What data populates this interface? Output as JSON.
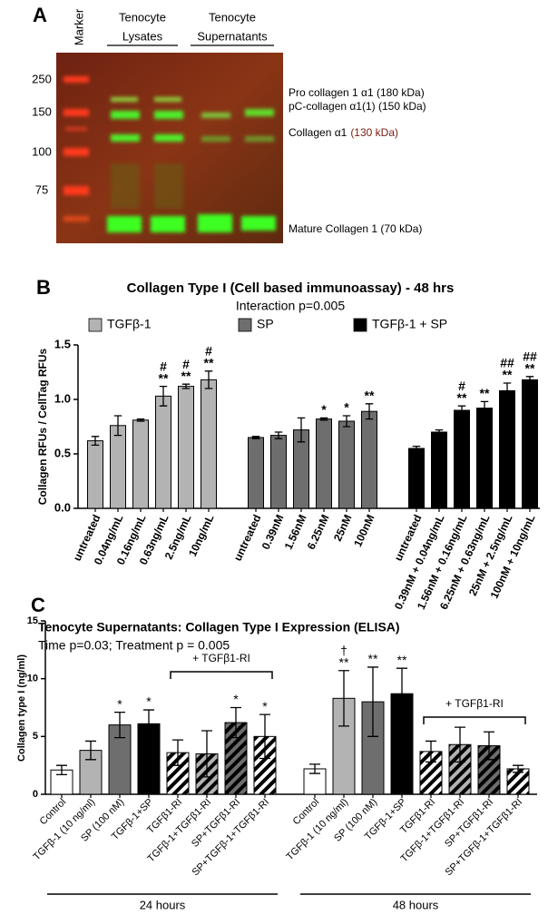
{
  "panel_a": {
    "letter": "A",
    "marker_label": "Marker",
    "lane_groups": [
      [
        "Tenocyte",
        "Lysates"
      ],
      [
        "Tenocyte",
        "Supernatants"
      ]
    ],
    "mw_markers": [
      250,
      150,
      100,
      75
    ],
    "band_labels": [
      [
        "Pro collagen 1 α1 (180 kDa)"
      ],
      [
        "pC-collagen α1(1) (150 kDa)"
      ],
      [
        "Collagen α1",
        "(130 kDa)"
      ],
      [
        "Mature Collagen 1 (70 kDa)"
      ]
    ]
  },
  "chart_data": [
    {
      "type": "bar",
      "letter": "B",
      "title": "Collagen Type I (Cell based immunoassay) - 48 hrs",
      "subtitle": "Interaction p=0.005",
      "y_label": "Collagen RFUs / CellTag RFUs",
      "categories": [
        "untreated",
        "0.04ng/mL",
        "0.16ng/mL",
        "0.63ng/mL",
        "2.5ng/mL",
        "10ng/mL",
        "untreated",
        "0.39nM",
        "1.56nM",
        "6.25nM",
        "25nM",
        "100nM",
        "untreated",
        "0.39nM + 0.04ng/mL",
        "1.56nM + 0.16ng/mL",
        "6.25nM + 0.63ng/mL",
        "25nM + 2.5ng/mL",
        "100nM + 10ng/mL"
      ],
      "series": [
        {
          "name": "TGFβ-1",
          "color": "#b3b3b3",
          "values": [
            0.62,
            0.76,
            0.81,
            1.03,
            1.12,
            1.18,
            null,
            null,
            null,
            null,
            null,
            null,
            null,
            null,
            null,
            null,
            null,
            null
          ],
          "errors": [
            0.04,
            0.09,
            0.01,
            0.09,
            0.02,
            0.08,
            null,
            null,
            null,
            null,
            null,
            null,
            null,
            null,
            null,
            null,
            null,
            null
          ]
        },
        {
          "name": "SP",
          "color": "#6e6e6e",
          "values": [
            null,
            null,
            null,
            null,
            null,
            null,
            0.65,
            0.67,
            0.72,
            0.82,
            0.8,
            0.89,
            null,
            null,
            null,
            null,
            null,
            null
          ],
          "errors": [
            null,
            null,
            null,
            null,
            null,
            null,
            0.01,
            0.03,
            0.11,
            0.01,
            0.05,
            0.07,
            null,
            null,
            null,
            null,
            null,
            null
          ]
        },
        {
          "name": "TGFβ-1 + SP",
          "color": "#000000",
          "values": [
            null,
            null,
            null,
            null,
            null,
            null,
            null,
            null,
            null,
            null,
            null,
            null,
            0.55,
            0.7,
            0.9,
            0.92,
            1.08,
            1.18
          ],
          "errors": [
            null,
            null,
            null,
            null,
            null,
            null,
            null,
            null,
            null,
            null,
            null,
            null,
            0.02,
            0.02,
            0.04,
            0.06,
            0.07,
            0.03
          ]
        }
      ],
      "annotations": [
        null,
        null,
        null,
        [
          "#",
          "**"
        ],
        [
          "#",
          "**"
        ],
        [
          "#",
          "**"
        ],
        null,
        null,
        null,
        [
          "*"
        ],
        [
          "*"
        ],
        [
          "**"
        ],
        null,
        null,
        [
          "#",
          "**"
        ],
        [
          "**"
        ],
        [
          "##",
          "**"
        ],
        [
          "##",
          "**"
        ]
      ],
      "ylim": [
        0,
        1.5
      ],
      "yticks": [
        {
          "value": 0,
          "label": "0.0"
        },
        0.5,
        {
          "value": 1,
          "label": "1.0"
        },
        1.5
      ]
    },
    {
      "type": "bar",
      "letter": "C",
      "title": "Tenocyte Supernatants: Collagen Type I Expression (ELISA)",
      "subtitle": "Time p=0.03; Treatment p = 0.005",
      "y_label": "Collagen type I (ng/ml)",
      "categories": [
        "Control",
        "TGFβ-1 (10 ng/ml)",
        "SP (100 nM)",
        "TGFβ-1+SP",
        "TGFβ1-RI",
        "TGFβ-1+TGFβ1-RI",
        "SP+TGFβ1-RI",
        "SP+TGFβ-1+TGFβ1-RI",
        "Control",
        "TGFβ-1 (10 ng/ml)",
        "SP (100 nM)",
        "TGFβ-1+SP",
        "TGFβ1-RI",
        "TGFβ-1+TGFβ1-RI",
        "SP+TGFβ1-RI",
        "SP+TGFβ-1+TGFβ1-RI"
      ],
      "values": [
        2.1,
        3.8,
        6.0,
        6.1,
        3.6,
        3.5,
        6.2,
        5.0,
        2.2,
        8.3,
        8.0,
        8.7,
        3.7,
        4.3,
        4.2,
        2.2
      ],
      "errors": [
        0.4,
        0.8,
        1.1,
        1.2,
        1.1,
        2.0,
        1.3,
        1.9,
        0.4,
        2.4,
        3.0,
        2.2,
        0.9,
        1.5,
        1.2,
        0.3
      ],
      "colors": [
        "#ffffff",
        "#b3b3b3",
        "#6e6e6e",
        "#000000",
        "#ffffff",
        "#b3b3b3",
        "#6e6e6e",
        "#000000",
        "#ffffff",
        "#b3b3b3",
        "#6e6e6e",
        "#000000",
        "#ffffff",
        "#b3b3b3",
        "#6e6e6e",
        "#000000"
      ],
      "hatch": [
        false,
        false,
        false,
        false,
        true,
        true,
        true,
        true,
        false,
        false,
        false,
        false,
        true,
        true,
        true,
        true
      ],
      "annotations": [
        null,
        null,
        [
          "*"
        ],
        [
          "*"
        ],
        null,
        null,
        [
          "*"
        ],
        [
          "*"
        ],
        null,
        [
          "†",
          "**"
        ],
        [
          "**"
        ],
        [
          "**"
        ],
        null,
        null,
        null,
        null
      ],
      "brackets": [
        "+ TGFβ1-RI",
        "+ TGFβ1-RI"
      ],
      "groups": [
        "24 hours",
        "48 hours"
      ],
      "ylim": [
        0,
        15
      ],
      "yticks": [
        0,
        5,
        10,
        15
      ]
    }
  ]
}
